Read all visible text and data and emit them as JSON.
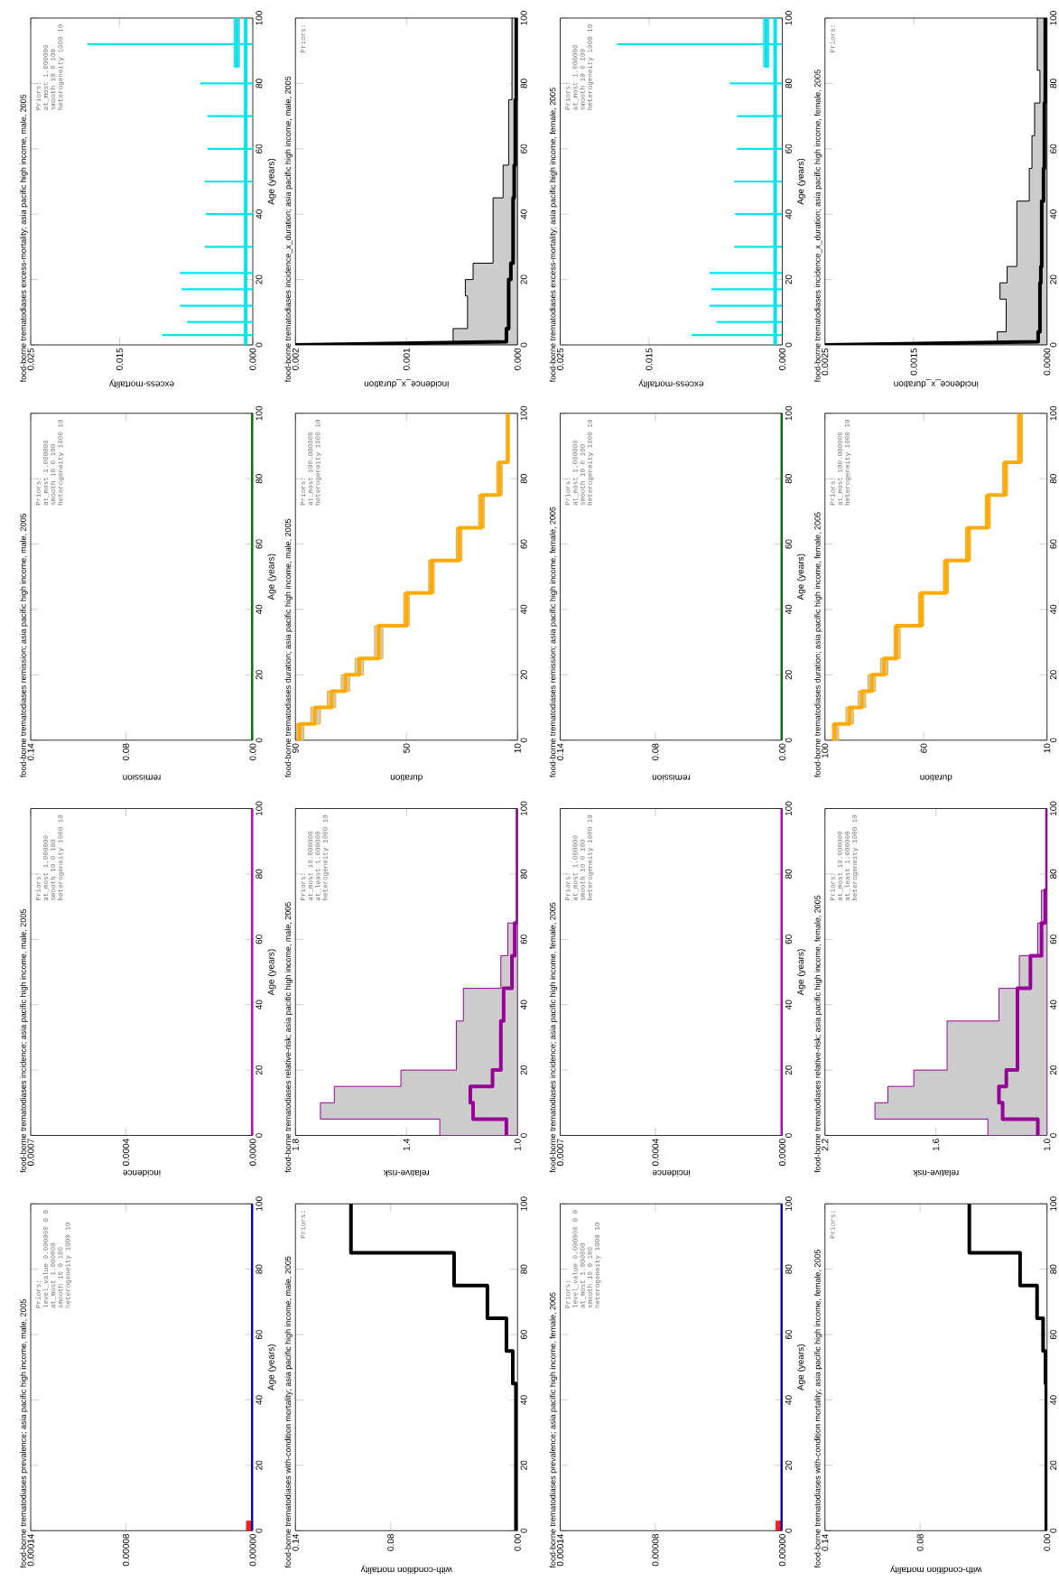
{
  "chart_data": [
    {
      "type": "line",
      "orientation": "horizontal",
      "title": "food-borne trematodiases prevalence; asia pacific high income, male, 2005",
      "ylabel": "Age (years)",
      "annotations": [
        "Priors:",
        "level_value 0.000000 0 0",
        "at_most 1.000000",
        "smooth 10 0 100",
        "heterogeneity 1000 10"
      ],
      "ylim": [
        0,
        100
      ],
      "yticks": [
        0,
        20,
        40,
        60,
        80,
        100
      ],
      "xlim": [
        0.00014,
        0
      ],
      "xticks": [
        {
          "value": 0,
          "label": "0.00000"
        },
        {
          "value": 8e-05,
          "label": "0.00008"
        },
        {
          "value": 0.00014,
          "label": "0.00014"
        }
      ],
      "series": [
        {
          "type": "area",
          "color": "#ee2222",
          "x": [
            0,
            3
          ],
          "values": [
            4e-06,
            4e-06
          ]
        },
        {
          "color": "#0000cc",
          "x": [
            0,
            100
          ],
          "values": [
            0,
            0
          ]
        }
      ]
    },
    {
      "type": "line",
      "orientation": "horizontal",
      "title": "food-borne trematodiases incidence; asia pacific high income, male, 2005",
      "ylabel": "Age (years)",
      "xlabel": "incidence",
      "annotations": [
        "Priors:",
        "at_most 1.000000",
        "smooth 10 0 100",
        "heterogeneity 1000 10"
      ],
      "ylim": [
        0,
        100
      ],
      "yticks": [
        0,
        20,
        40,
        60,
        80,
        100
      ],
      "xlim": [
        0.0007,
        0
      ],
      "xticks": [
        {
          "value": 0,
          "label": "0.0000"
        },
        {
          "value": 0.0004,
          "label": "0.0004"
        },
        {
          "value": 0.0007,
          "label": "0.0007"
        }
      ],
      "series": [
        {
          "color": "#cc00cc",
          "x": [
            0,
            100
          ],
          "values": [
            0,
            0
          ]
        }
      ]
    },
    {
      "type": "line",
      "orientation": "horizontal",
      "title": "food-borne trematodiases remission; asia pacific high income, male, 2005",
      "ylabel": "Age (years)",
      "xlabel": "remission",
      "annotations": [
        "Priors:",
        "at_most 1.000000",
        "smooth 10 0 100",
        "heterogeneity 1000 10"
      ],
      "ylim": [
        0,
        100
      ],
      "yticks": [
        0,
        20,
        40,
        60,
        80,
        100
      ],
      "xlim": [
        0.14,
        0
      ],
      "xticks": [
        {
          "value": 0,
          "label": "0.00"
        },
        {
          "value": 0.08,
          "label": "0.08"
        },
        {
          "value": 0.14,
          "label": "0.14"
        }
      ],
      "series": [
        {
          "color": "#007f00",
          "x": [
            0,
            100
          ],
          "values": [
            0,
            0
          ]
        }
      ]
    },
    {
      "type": "bar",
      "orientation": "horizontal",
      "title": "food-borne trematodiases excess-mortality; asia pacific high income, male, 2005",
      "ylabel": "Age (years)",
      "xlabel": "excess-mortality",
      "annotations": [
        "Priors:",
        "at_most 1.000000",
        "smooth 10 0 100",
        "heterogeneity 1000 10"
      ],
      "ylim": [
        0,
        100
      ],
      "yticks": [
        0,
        20,
        40,
        60,
        80,
        100
      ],
      "xlim": [
        0.025,
        0
      ],
      "xticks": [
        {
          "value": 0,
          "label": "0.000"
        },
        {
          "value": 0.015,
          "label": "0.015"
        },
        {
          "value": 0.025,
          "label": "0.025"
        }
      ],
      "series": [
        {
          "color": "#00e5ee",
          "x": [
            3,
            7,
            12,
            17,
            22,
            30,
            40,
            50,
            60,
            70,
            80,
            92
          ],
          "values": [
            0.0102,
            0.0074,
            0.0082,
            0.008,
            0.0082,
            0.0054,
            0.0053,
            0.0054,
            0.0051,
            0.0051,
            0.0059,
            0.0186
          ]
        },
        {
          "type": "step",
          "color": "#00e5ee",
          "x": [
            85,
            100
          ],
          "values": [
            0.0018,
            0.0018
          ],
          "lower": [
            0.0015,
            0.0015
          ],
          "upper": [
            0.0021,
            0.0021
          ]
        },
        {
          "type": "line",
          "color": "#00e5ee",
          "x": [
            0,
            100
          ],
          "values": [
            0.0008,
            0.0008
          ]
        }
      ]
    },
    {
      "type": "step",
      "orientation": "horizontal",
      "title": "food-borne trematodiases with-condition mortality; asia pacific high income, male, 2005",
      "xlabel": "with-condition mortality",
      "annotations": [
        "Priors:"
      ],
      "ylim": [
        0,
        100
      ],
      "yticks": [
        0,
        20,
        40,
        60,
        80,
        100
      ],
      "xlim": [
        0.14,
        0
      ],
      "xticks": [
        {
          "value": 0,
          "label": "0.00"
        },
        {
          "value": 0.08,
          "label": "0.08"
        },
        {
          "value": 0.14,
          "label": "0.14"
        }
      ],
      "series": [
        {
          "color": "#000000",
          "x": [
            0,
            45,
            55,
            65,
            75,
            85,
            100
          ],
          "values": [
            0.001,
            0.003,
            0.007,
            0.019,
            0.04,
            0.105,
            0.105
          ]
        }
      ]
    },
    {
      "type": "step",
      "orientation": "horizontal",
      "title": "food-borne trematodiases relative-risk; asia pacific high income, male, 2005",
      "xlabel": "relative-risk",
      "annotations": [
        "Priors:",
        "at_most 10.000000",
        "at_least 1.000000",
        "heterogeneity 1000 10"
      ],
      "ylim": [
        0,
        100
      ],
      "yticks": [
        0,
        20,
        40,
        60,
        80,
        100
      ],
      "xlim": [
        1.8,
        1.0
      ],
      "xticks": [
        {
          "value": 1.0,
          "label": "1.0"
        },
        {
          "value": 1.4,
          "label": "1.4"
        },
        {
          "value": 1.8,
          "label": "1.8"
        }
      ],
      "series": [
        {
          "color": "#990099",
          "x": [
            0,
            5,
            10,
            15,
            20,
            25,
            35,
            45,
            55,
            65,
            75,
            85,
            100
          ],
          "values": [
            1.04,
            1.16,
            1.17,
            1.09,
            1.06,
            1.06,
            1.05,
            1.02,
            1.01,
            1.0,
            1.0,
            1.0,
            1.0
          ],
          "lower": [
            1.0,
            1.0,
            1.0,
            1.0,
            1.0,
            1.0,
            1.0,
            1.0,
            1.0,
            1.0,
            1.0,
            1.0,
            1.0
          ],
          "upper": [
            1.28,
            1.71,
            1.66,
            1.42,
            1.22,
            1.22,
            1.195,
            1.06,
            1.035,
            1.0,
            1.0,
            1.0,
            1.0
          ]
        }
      ]
    },
    {
      "type": "step",
      "orientation": "horizontal",
      "title": "food-borne trematodiases duration; asia pacific high income, male, 2005",
      "xlabel": "duration",
      "annotations": [
        "Priors:",
        "at_most 100.000000",
        "heterogeneity 1000 10"
      ],
      "ylim": [
        0,
        100
      ],
      "yticks": [
        0,
        20,
        40,
        60,
        80,
        100
      ],
      "xlim": [
        90,
        10
      ],
      "xticks": [
        10,
        50,
        90
      ],
      "series": [
        {
          "color": "#ffaa00",
          "x": [
            0,
            5,
            10,
            15,
            20,
            25,
            35,
            45,
            55,
            65,
            75,
            85,
            100
          ],
          "values": [
            88.5,
            83,
            77,
            72,
            67,
            60,
            50,
            41,
            31,
            23,
            16.5,
            13.5,
            13.5
          ],
          "lower": [
            87,
            81,
            75.5,
            70.5,
            65.5,
            58.5,
            49,
            40,
            30,
            22,
            15.5,
            13,
            13
          ],
          "upper": [
            89.5,
            84.5,
            78.5,
            73.5,
            68.5,
            61.5,
            51,
            42,
            32,
            24,
            17.5,
            14,
            14
          ]
        }
      ]
    },
    {
      "type": "line",
      "orientation": "horizontal",
      "title": "food-borne trematodiases incidence_x_duration; asia pacific high income, male, 2005",
      "xlabel": "incidence_x_duration",
      "annotations": [
        "Priors:"
      ],
      "ylim": [
        0,
        100
      ],
      "yticks": [
        0,
        20,
        40,
        60,
        80,
        100
      ],
      "xlim": [
        0.002,
        0
      ],
      "xticks": [
        {
          "value": 0,
          "label": "0.000"
        },
        {
          "value": 0.001,
          "label": "0.001"
        },
        {
          "value": 0.002,
          "label": "0.002"
        }
      ],
      "series": [
        {
          "color": "#000000",
          "x": [
            0,
            1,
            5,
            5,
            15,
            15,
            20,
            20,
            25,
            25,
            45,
            45,
            55,
            55,
            75,
            75,
            100
          ],
          "values": [
            0.002,
            0.0001,
            0.0001,
            8e-05,
            8e-05,
            8e-05,
            8e-05,
            6e-05,
            6e-05,
            4e-05,
            4e-05,
            3e-05,
            3e-05,
            2e-05,
            2e-05,
            1e-05,
            1e-05
          ],
          "lower": [
            0,
            0,
            0,
            0,
            0,
            0,
            0,
            0,
            0,
            0,
            0,
            0,
            0,
            0,
            0,
            0,
            0
          ],
          "upper": [
            0.002,
            0.00058,
            0.00058,
            0.00045,
            0.00045,
            0.00047,
            0.00047,
            0.0004,
            0.0004,
            0.00022,
            0.00022,
            0.00013,
            0.00013,
            8e-05,
            8e-05,
            5e-05,
            5e-05
          ]
        }
      ]
    },
    {
      "type": "line",
      "orientation": "horizontal",
      "title": "food-borne trematodiases prevalence; asia pacific high income, female, 2005",
      "ylabel": "Age (years)",
      "annotations": [
        "Priors:",
        "level_value 0.000000 0 0",
        "at_most 1.000000",
        "smooth 10 0 100",
        "heterogeneity 1000 10"
      ],
      "ylim": [
        0,
        100
      ],
      "yticks": [
        0,
        20,
        40,
        60,
        80,
        100
      ],
      "xlim": [
        0.00014,
        0
      ],
      "xticks": [
        {
          "value": 0,
          "label": "0.00000"
        },
        {
          "value": 8e-05,
          "label": "0.00008"
        },
        {
          "value": 0.00014,
          "label": "0.00014"
        }
      ],
      "series": [
        {
          "type": "area",
          "color": "#ee2222",
          "x": [
            0,
            3
          ],
          "values": [
            4e-06,
            4e-06
          ]
        },
        {
          "color": "#0000cc",
          "x": [
            0,
            100
          ],
          "values": [
            0,
            0
          ]
        }
      ]
    },
    {
      "type": "line",
      "orientation": "horizontal",
      "title": "food-borne trematodiases incidence; asia pacific high income, female, 2005",
      "ylabel": "Age (years)",
      "xlabel": "incidence",
      "annotations": [
        "Priors:",
        "at_most 1.000000",
        "smooth 10 0 100",
        "heterogeneity 1000 10"
      ],
      "ylim": [
        0,
        100
      ],
      "yticks": [
        0,
        20,
        40,
        60,
        80,
        100
      ],
      "xlim": [
        0.0007,
        0
      ],
      "xticks": [
        {
          "value": 0,
          "label": "0.0000"
        },
        {
          "value": 0.0004,
          "label": "0.0004"
        },
        {
          "value": 0.0007,
          "label": "0.0007"
        }
      ],
      "series": [
        {
          "color": "#cc00cc",
          "x": [
            0,
            100
          ],
          "values": [
            0,
            0
          ]
        }
      ]
    },
    {
      "type": "line",
      "orientation": "horizontal",
      "title": "food-borne trematodiases remission; asia pacific high income, female, 2005",
      "ylabel": "Age (years)",
      "xlabel": "remission",
      "annotations": [
        "Priors:",
        "at_most 1.000000",
        "smooth 10 0 100",
        "heterogeneity 1000 10"
      ],
      "ylim": [
        0,
        100
      ],
      "yticks": [
        0,
        20,
        40,
        60,
        80,
        100
      ],
      "xlim": [
        0.14,
        0
      ],
      "xticks": [
        {
          "value": 0,
          "label": "0.00"
        },
        {
          "value": 0.08,
          "label": "0.08"
        },
        {
          "value": 0.14,
          "label": "0.14"
        }
      ],
      "series": [
        {
          "color": "#007f00",
          "x": [
            0,
            100
          ],
          "values": [
            0,
            0
          ]
        }
      ]
    },
    {
      "type": "bar",
      "orientation": "horizontal",
      "title": "food-borne trematodiases excess-mortality; asia pacific high income, female, 2005",
      "ylabel": "Age (years)",
      "xlabel": "excess-mortality",
      "annotations": [
        "Priors:",
        "at_most 1.000000",
        "smooth 10 0 100",
        "heterogeneity 1000 10"
      ],
      "ylim": [
        0,
        100
      ],
      "yticks": [
        0,
        20,
        40,
        60,
        80,
        100
      ],
      "xlim": [
        0.025,
        0
      ],
      "xticks": [
        {
          "value": 0,
          "label": "0.000"
        },
        {
          "value": 0.015,
          "label": "0.015"
        },
        {
          "value": 0.025,
          "label": "0.025"
        }
      ],
      "series": [
        {
          "color": "#00e5ee",
          "x": [
            3,
            7,
            12,
            17,
            22,
            30,
            40,
            50,
            60,
            70,
            80,
            92
          ],
          "values": [
            0.0102,
            0.0074,
            0.0082,
            0.008,
            0.0082,
            0.0054,
            0.0053,
            0.0054,
            0.0051,
            0.0051,
            0.0059,
            0.0186
          ]
        },
        {
          "type": "step",
          "color": "#00e5ee",
          "x": [
            85,
            100
          ],
          "values": [
            0.0018,
            0.0018
          ],
          "lower": [
            0.0015,
            0.0015
          ],
          "upper": [
            0.0021,
            0.0021
          ]
        },
        {
          "type": "line",
          "color": "#00e5ee",
          "x": [
            0,
            100
          ],
          "values": [
            0.0008,
            0.0008
          ]
        }
      ]
    },
    {
      "type": "step",
      "orientation": "horizontal",
      "title": "food-borne trematodiases with-condition mortality; asia pacific high income, female, 2005",
      "xlabel": "with-condition mortality",
      "annotations": [
        "Priors:"
      ],
      "ylim": [
        0,
        100
      ],
      "yticks": [
        0,
        20,
        40,
        60,
        80,
        100
      ],
      "xlim": [
        0.14,
        0
      ],
      "xticks": [
        {
          "value": 0,
          "label": "0.00"
        },
        {
          "value": 0.08,
          "label": "0.08"
        },
        {
          "value": 0.14,
          "label": "0.14"
        }
      ],
      "series": [
        {
          "color": "#000000",
          "x": [
            0,
            45,
            55,
            65,
            75,
            85,
            100
          ],
          "values": [
            0.0005,
            0.001,
            0.0025,
            0.0063,
            0.017,
            0.049,
            0.049
          ]
        }
      ]
    },
    {
      "type": "step",
      "orientation": "horizontal",
      "title": "food-borne trematodiases relative-risk; asia pacific high income, female, 2005",
      "xlabel": "relative-risk",
      "annotations": [
        "Priors:",
        "at_most 10.000000",
        "at_least 1.000000",
        "heterogeneity 1000 10"
      ],
      "ylim": [
        0,
        100
      ],
      "yticks": [
        0,
        20,
        40,
        60,
        80,
        100
      ],
      "xlim": [
        2.2,
        1.0
      ],
      "xticks": [
        {
          "value": 1.0,
          "label": "1.0"
        },
        {
          "value": 1.6,
          "label": "1.6"
        },
        {
          "value": 2.2,
          "label": "2.2"
        }
      ],
      "series": [
        {
          "color": "#990099",
          "x": [
            0,
            5,
            10,
            15,
            20,
            25,
            35,
            45,
            55,
            65,
            75,
            85,
            100
          ],
          "values": [
            1.05,
            1.24,
            1.26,
            1.22,
            1.16,
            1.16,
            1.16,
            1.09,
            1.03,
            1.01,
            1.0,
            1.0,
            1.0
          ],
          "lower": [
            1.0,
            1.0,
            1.0,
            1.0,
            1.0,
            1.0,
            1.0,
            1.0,
            1.0,
            1.0,
            1.0,
            1.0,
            1.0
          ],
          "upper": [
            1.32,
            1.93,
            1.86,
            1.72,
            1.54,
            1.54,
            1.26,
            1.15,
            1.05,
            1.03,
            1.0,
            1.0,
            1.0
          ]
        }
      ]
    },
    {
      "type": "step",
      "orientation": "horizontal",
      "title": "food-borne trematodiases duration; asia pacific high income, female, 2005",
      "xlabel": "duration",
      "annotations": [
        "Priors:",
        "at_most 100.000000",
        "heterogeneity 1000 10"
      ],
      "ylim": [
        0,
        100
      ],
      "yticks": [
        0,
        20,
        40,
        60,
        80,
        100
      ],
      "xlim": [
        100,
        10
      ],
      "xticks": [
        10,
        60,
        100
      ],
      "series": [
        {
          "color": "#ffaa00",
          "x": [
            0,
            5,
            10,
            15,
            20,
            25,
            35,
            45,
            55,
            65,
            75,
            85,
            100
          ],
          "values": [
            96,
            90,
            85,
            81,
            76,
            71,
            61,
            51,
            42,
            34,
            27,
            21,
            21
          ],
          "lower": [
            94.5,
            88.5,
            83.5,
            79.5,
            74.5,
            69.5,
            60,
            50,
            41,
            33,
            26,
            20,
            20
          ],
          "upper": [
            97,
            91.5,
            86.5,
            82.5,
            77.5,
            72,
            62,
            52,
            43,
            35,
            28,
            22,
            22
          ]
        }
      ]
    },
    {
      "type": "line",
      "orientation": "horizontal",
      "title": "food-borne trematodiases incidence_x_duration; asia pacific high income, female, 2005",
      "xlabel": "incidence_x_duration",
      "annotations": [
        "Priors:"
      ],
      "ylim": [
        0,
        100
      ],
      "yticks": [
        0,
        20,
        40,
        60,
        80,
        100
      ],
      "xlim": [
        0.0025,
        0
      ],
      "xticks": [
        {
          "value": 0,
          "label": "0.0000"
        },
        {
          "value": 0.0015,
          "label": "0.0015"
        },
        {
          "value": 0.0025,
          "label": "0.0025"
        }
      ],
      "series": [
        {
          "color": "#000000",
          "x": [
            0,
            1,
            4,
            4,
            14,
            14,
            19,
            19,
            24,
            24,
            44,
            44,
            54,
            54,
            64,
            64,
            74,
            74,
            84,
            84,
            100
          ],
          "values": [
            0.0025,
            0.0001,
            0.0001,
            8e-05,
            8e-05,
            8e-05,
            8e-05,
            7e-05,
            7e-05,
            6e-05,
            6e-05,
            4e-05,
            4e-05,
            3e-05,
            3e-05,
            3e-05,
            3e-05,
            2e-05,
            2e-05,
            2e-05,
            2e-05
          ],
          "lower": [
            0,
            0,
            0,
            0,
            0,
            0,
            0,
            0,
            0,
            0,
            0,
            0,
            0,
            0,
            0,
            0,
            0,
            0,
            0,
            0,
            0
          ],
          "upper": [
            0.0025,
            0.00056,
            0.00056,
            0.00046,
            0.00046,
            0.00053,
            0.00053,
            0.00045,
            0.00045,
            0.00034,
            0.00034,
            0.0002,
            0.0002,
            0.00017,
            0.00017,
            0.00014,
            0.00014,
            8e-05,
            8e-05,
            0.00011,
            0.00011
          ]
        }
      ]
    }
  ]
}
